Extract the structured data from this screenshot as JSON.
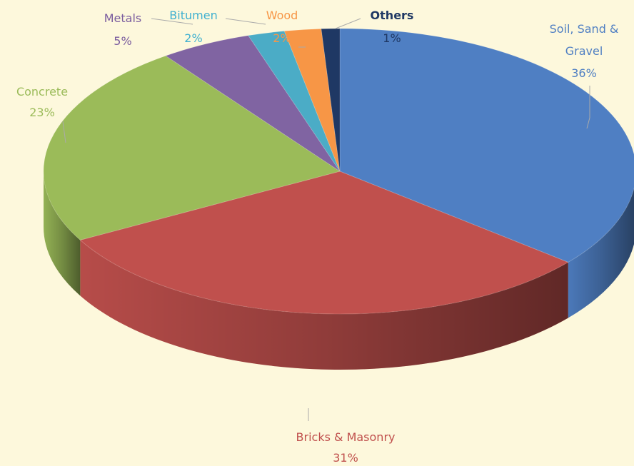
{
  "chart_data": {
    "type": "pie",
    "title": "",
    "slices": [
      {
        "label": "Soil, Sand & Gravel",
        "value": 36,
        "pct_text": "36%",
        "color": "#4f7fc3"
      },
      {
        "label": "Bricks & Masonry",
        "value": 31,
        "pct_text": "31%",
        "color": "#c0504d"
      },
      {
        "label": "Concrete",
        "value": 23,
        "pct_text": "23%",
        "color": "#9bbb59"
      },
      {
        "label": "Metals",
        "value": 5,
        "pct_text": "5%",
        "color": "#8064a2"
      },
      {
        "label": "Bitumen",
        "value": 2,
        "pct_text": "2%",
        "color": "#4bacc6"
      },
      {
        "label": "Wood",
        "value": 2,
        "pct_text": "2%",
        "color": "#f79646"
      },
      {
        "label": "Others",
        "value": 1,
        "pct_text": "1%",
        "color": "#1f3864"
      }
    ],
    "label_colors": {
      "Soil, Sand & Gravel": "#4f7fc3",
      "Bricks & Masonry": "#c0504d",
      "Concrete": "#9bbb59",
      "Metals": "#7a5c9e",
      "Bitumen": "#3fb0d0",
      "Wood": "#f79646",
      "Others": "#1f3864"
    },
    "background": "#fdf8dc",
    "legend": "none",
    "style": "3d-exploded-none"
  }
}
